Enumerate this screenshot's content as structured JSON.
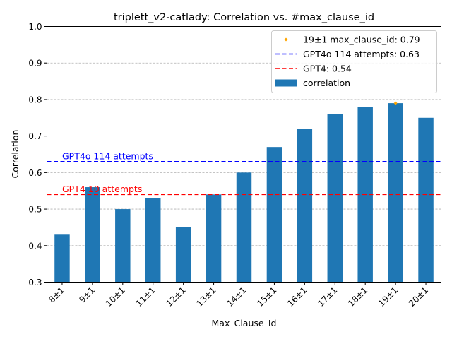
{
  "chart_data": {
    "type": "bar",
    "title": "triplett_v2-catlady: Correlation vs. #max_clause_id",
    "xlabel": "Max_Clause_Id",
    "ylabel": "Correlation",
    "ylim": [
      0.3,
      1.0
    ],
    "yticks": [
      "0.3",
      "0.4",
      "0.5",
      "0.6",
      "0.7",
      "0.8",
      "0.9",
      "1.0"
    ],
    "grid": "horizontal dashed",
    "categories": [
      "8±1",
      "9±1",
      "10±1",
      "11±1",
      "12±1",
      "13±1",
      "14±1",
      "15±1",
      "16±1",
      "17±1",
      "18±1",
      "19±1",
      "20±1"
    ],
    "series": [
      {
        "name": "correlation",
        "color": "#1f77b4",
        "values": [
          0.43,
          0.56,
          0.5,
          0.53,
          0.45,
          0.54,
          0.6,
          0.67,
          0.72,
          0.76,
          0.78,
          0.79,
          0.75
        ]
      }
    ],
    "highlight": {
      "category": "19±1",
      "value": 0.79,
      "color": "#ffa500",
      "legend": "19±1 max_clause_id: 0.79"
    },
    "reference_lines": [
      {
        "value": 0.63,
        "color": "#0000ff",
        "legend": "GPT4o 114 attempts: 0.63",
        "label": "GPT4o 114 attempts"
      },
      {
        "value": 0.54,
        "color": "#ff0000",
        "legend": "GPT4: 0.54",
        "label": "GPT4 10 attempts"
      }
    ],
    "legend_position": "top-right"
  }
}
